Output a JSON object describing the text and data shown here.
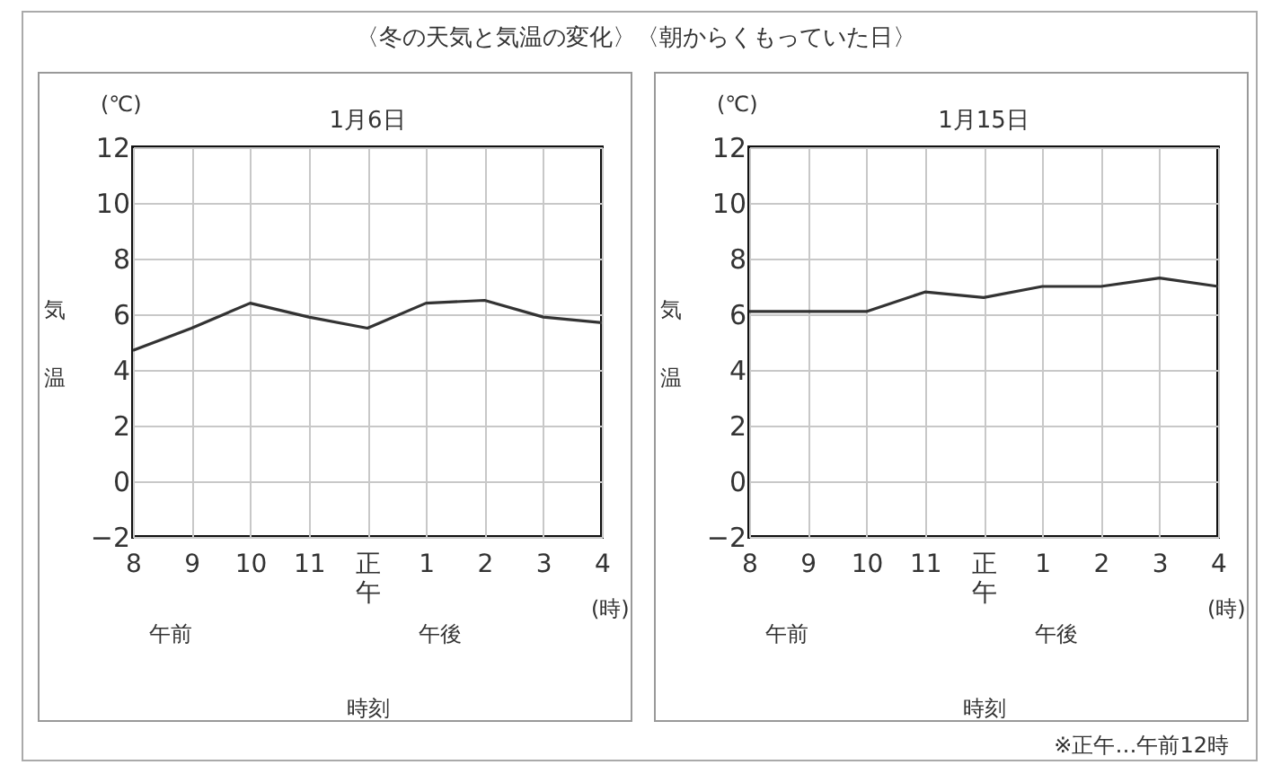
{
  "chart_data": [
    {
      "type": "line",
      "title": "1月6日",
      "ylabel": "気温",
      "xlabel": "時刻",
      "categories": [
        "8",
        "9",
        "10",
        "11",
        "正午",
        "1",
        "2",
        "3",
        "4"
      ],
      "series": [
        {
          "color": "#333333",
          "values": [
            4.7,
            5.5,
            6.4,
            5.9,
            5.5,
            6.4,
            6.5,
            5.9,
            5.7
          ]
        }
      ],
      "ylim": [
        -2,
        12
      ],
      "yticks": [
        -2,
        0,
        2,
        4,
        6,
        8,
        10,
        12
      ],
      "grid": true,
      "annotations": [
        "〈冬の天気と気温の変化〉〈朝からくもっていた日〉",
        "(℃)",
        "午前",
        "午後",
        "(時)"
      ]
    },
    {
      "type": "line",
      "title": "1月15日",
      "ylabel": "気温",
      "xlabel": "時刻",
      "categories": [
        "8",
        "9",
        "10",
        "11",
        "正午",
        "1",
        "2",
        "3",
        "4"
      ],
      "series": [
        {
          "color": "#333333",
          "values": [
            6.1,
            6.1,
            6.1,
            6.8,
            6.6,
            7.0,
            7.0,
            7.3,
            7.0
          ]
        }
      ],
      "ylim": [
        -2,
        12
      ],
      "yticks": [
        -2,
        0,
        2,
        4,
        6,
        8,
        10,
        12
      ],
      "grid": true,
      "annotations": [
        "(℃)",
        "午前",
        "午後",
        "(時)",
        "※正午…午前12時"
      ]
    }
  ]
}
